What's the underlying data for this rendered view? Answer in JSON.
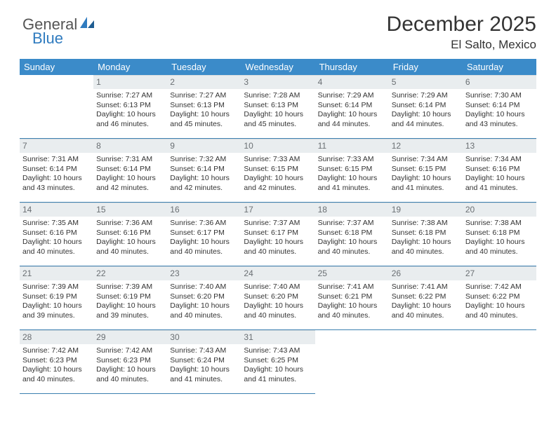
{
  "brand": {
    "part1": "General",
    "part2": "Blue"
  },
  "title": "December 2025",
  "location": "El Salto, Mexico",
  "colors": {
    "header_bg": "#3b8bc9",
    "header_text": "#ffffff",
    "daynum_bg": "#e9edef",
    "daynum_text": "#6a6f73",
    "border": "#3b7fb0",
    "logo_blue": "#2f7bbf"
  },
  "weekdays": [
    "Sunday",
    "Monday",
    "Tuesday",
    "Wednesday",
    "Thursday",
    "Friday",
    "Saturday"
  ],
  "weeks": [
    [
      null,
      {
        "n": "1",
        "r": "7:27 AM",
        "s": "6:13 PM",
        "d": "10 hours and 46 minutes."
      },
      {
        "n": "2",
        "r": "7:27 AM",
        "s": "6:13 PM",
        "d": "10 hours and 45 minutes."
      },
      {
        "n": "3",
        "r": "7:28 AM",
        "s": "6:13 PM",
        "d": "10 hours and 45 minutes."
      },
      {
        "n": "4",
        "r": "7:29 AM",
        "s": "6:14 PM",
        "d": "10 hours and 44 minutes."
      },
      {
        "n": "5",
        "r": "7:29 AM",
        "s": "6:14 PM",
        "d": "10 hours and 44 minutes."
      },
      {
        "n": "6",
        "r": "7:30 AM",
        "s": "6:14 PM",
        "d": "10 hours and 43 minutes."
      }
    ],
    [
      {
        "n": "7",
        "r": "7:31 AM",
        "s": "6:14 PM",
        "d": "10 hours and 43 minutes."
      },
      {
        "n": "8",
        "r": "7:31 AM",
        "s": "6:14 PM",
        "d": "10 hours and 42 minutes."
      },
      {
        "n": "9",
        "r": "7:32 AM",
        "s": "6:14 PM",
        "d": "10 hours and 42 minutes."
      },
      {
        "n": "10",
        "r": "7:33 AM",
        "s": "6:15 PM",
        "d": "10 hours and 42 minutes."
      },
      {
        "n": "11",
        "r": "7:33 AM",
        "s": "6:15 PM",
        "d": "10 hours and 41 minutes."
      },
      {
        "n": "12",
        "r": "7:34 AM",
        "s": "6:15 PM",
        "d": "10 hours and 41 minutes."
      },
      {
        "n": "13",
        "r": "7:34 AM",
        "s": "6:16 PM",
        "d": "10 hours and 41 minutes."
      }
    ],
    [
      {
        "n": "14",
        "r": "7:35 AM",
        "s": "6:16 PM",
        "d": "10 hours and 40 minutes."
      },
      {
        "n": "15",
        "r": "7:36 AM",
        "s": "6:16 PM",
        "d": "10 hours and 40 minutes."
      },
      {
        "n": "16",
        "r": "7:36 AM",
        "s": "6:17 PM",
        "d": "10 hours and 40 minutes."
      },
      {
        "n": "17",
        "r": "7:37 AM",
        "s": "6:17 PM",
        "d": "10 hours and 40 minutes."
      },
      {
        "n": "18",
        "r": "7:37 AM",
        "s": "6:18 PM",
        "d": "10 hours and 40 minutes."
      },
      {
        "n": "19",
        "r": "7:38 AM",
        "s": "6:18 PM",
        "d": "10 hours and 40 minutes."
      },
      {
        "n": "20",
        "r": "7:38 AM",
        "s": "6:18 PM",
        "d": "10 hours and 40 minutes."
      }
    ],
    [
      {
        "n": "21",
        "r": "7:39 AM",
        "s": "6:19 PM",
        "d": "10 hours and 39 minutes."
      },
      {
        "n": "22",
        "r": "7:39 AM",
        "s": "6:19 PM",
        "d": "10 hours and 39 minutes."
      },
      {
        "n": "23",
        "r": "7:40 AM",
        "s": "6:20 PM",
        "d": "10 hours and 40 minutes."
      },
      {
        "n": "24",
        "r": "7:40 AM",
        "s": "6:20 PM",
        "d": "10 hours and 40 minutes."
      },
      {
        "n": "25",
        "r": "7:41 AM",
        "s": "6:21 PM",
        "d": "10 hours and 40 minutes."
      },
      {
        "n": "26",
        "r": "7:41 AM",
        "s": "6:22 PM",
        "d": "10 hours and 40 minutes."
      },
      {
        "n": "27",
        "r": "7:42 AM",
        "s": "6:22 PM",
        "d": "10 hours and 40 minutes."
      }
    ],
    [
      {
        "n": "28",
        "r": "7:42 AM",
        "s": "6:23 PM",
        "d": "10 hours and 40 minutes."
      },
      {
        "n": "29",
        "r": "7:42 AM",
        "s": "6:23 PM",
        "d": "10 hours and 40 minutes."
      },
      {
        "n": "30",
        "r": "7:43 AM",
        "s": "6:24 PM",
        "d": "10 hours and 41 minutes."
      },
      {
        "n": "31",
        "r": "7:43 AM",
        "s": "6:25 PM",
        "d": "10 hours and 41 minutes."
      },
      null,
      null,
      null
    ]
  ],
  "labels": {
    "sunrise": "Sunrise:",
    "sunset": "Sunset:",
    "daylight": "Daylight:"
  }
}
